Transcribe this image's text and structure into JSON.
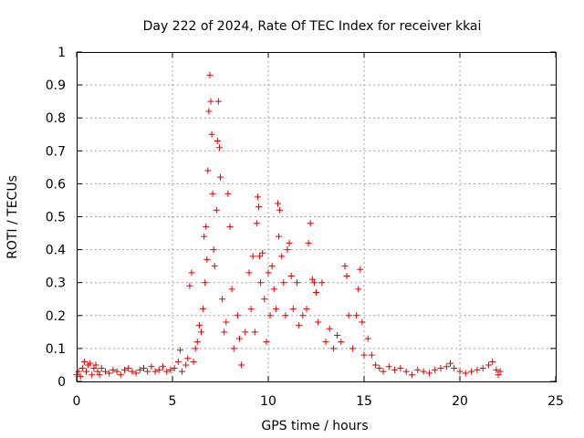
{
  "chart_data": {
    "type": "scatter",
    "title": "Day 222 of 2024, Rate Of TEC Index for receiver kkai",
    "xlabel": "GPS time / hours",
    "ylabel": "ROTI / TECUs",
    "xlim": [
      0,
      25
    ],
    "ylim": [
      0,
      1
    ],
    "x_ticks": [
      "0",
      "5",
      "10",
      "15",
      "20",
      "25"
    ],
    "y_ticks": [
      "0",
      "0.1",
      "0.2",
      "0.3",
      "0.4",
      "0.5",
      "0.6",
      "0.7",
      "0.8",
      "0.9",
      "1"
    ],
    "grid": true,
    "marker": "+",
    "color": "#e00000",
    "series": [
      {
        "points": [
          [
            0.0,
            0.02
          ],
          [
            0.1,
            0.03
          ],
          [
            0.2,
            0.015
          ],
          [
            0.3,
            0.04
          ],
          [
            0.4,
            0.06
          ],
          [
            0.5,
            0.03
          ],
          [
            0.6,
            0.05
          ],
          [
            0.7,
            0.055
          ],
          [
            0.8,
            0.02
          ],
          [
            0.9,
            0.04
          ],
          [
            1.0,
            0.05
          ],
          [
            1.1,
            0.03
          ],
          [
            1.2,
            0.02
          ],
          [
            1.3,
            0.04
          ],
          [
            1.5,
            0.03
          ],
          [
            1.7,
            0.025
          ],
          [
            1.9,
            0.035
          ],
          [
            2.1,
            0.03
          ],
          [
            2.3,
            0.02
          ],
          [
            2.5,
            0.035
          ],
          [
            2.7,
            0.04
          ],
          [
            2.9,
            0.03
          ],
          [
            3.1,
            0.025
          ],
          [
            3.3,
            0.035
          ],
          [
            3.5,
            0.04
          ],
          [
            3.7,
            0.03
          ],
          [
            3.9,
            0.045
          ],
          [
            4.1,
            0.03
          ],
          [
            4.3,
            0.035
          ],
          [
            4.5,
            0.045
          ],
          [
            4.7,
            0.03
          ],
          [
            4.9,
            0.035
          ],
          [
            5.1,
            0.04
          ],
          [
            5.3,
            0.06
          ],
          [
            5.4,
            0.095
          ],
          [
            5.5,
            0.03
          ],
          [
            5.7,
            0.05
          ],
          [
            5.8,
            0.07
          ],
          [
            5.9,
            0.29
          ],
          [
            6.0,
            0.33
          ],
          [
            6.1,
            0.06
          ],
          [
            6.2,
            0.1
          ],
          [
            6.3,
            0.12
          ],
          [
            6.4,
            0.17
          ],
          [
            6.5,
            0.15
          ],
          [
            6.6,
            0.22
          ],
          [
            6.65,
            0.44
          ],
          [
            6.7,
            0.3
          ],
          [
            6.75,
            0.47
          ],
          [
            6.8,
            0.37
          ],
          [
            6.85,
            0.64
          ],
          [
            6.9,
            0.82
          ],
          [
            6.95,
            0.93
          ],
          [
            7.0,
            0.85
          ],
          [
            7.05,
            0.75
          ],
          [
            7.1,
            0.57
          ],
          [
            7.15,
            0.4
          ],
          [
            7.2,
            0.35
          ],
          [
            7.3,
            0.52
          ],
          [
            7.35,
            0.73
          ],
          [
            7.4,
            0.85
          ],
          [
            7.45,
            0.71
          ],
          [
            7.5,
            0.62
          ],
          [
            7.6,
            0.25
          ],
          [
            7.7,
            0.15
          ],
          [
            7.8,
            0.18
          ],
          [
            7.9,
            0.57
          ],
          [
            8.0,
            0.47
          ],
          [
            8.1,
            0.28
          ],
          [
            8.2,
            0.1
          ],
          [
            8.4,
            0.2
          ],
          [
            8.5,
            0.13
          ],
          [
            8.6,
            0.05
          ],
          [
            8.8,
            0.15
          ],
          [
            9.0,
            0.33
          ],
          [
            9.1,
            0.22
          ],
          [
            9.2,
            0.38
          ],
          [
            9.3,
            0.15
          ],
          [
            9.4,
            0.48
          ],
          [
            9.45,
            0.56
          ],
          [
            9.5,
            0.53
          ],
          [
            9.55,
            0.38
          ],
          [
            9.6,
            0.3
          ],
          [
            9.7,
            0.39
          ],
          [
            9.8,
            0.25
          ],
          [
            9.9,
            0.12
          ],
          [
            10.0,
            0.33
          ],
          [
            10.1,
            0.2
          ],
          [
            10.2,
            0.35
          ],
          [
            10.3,
            0.28
          ],
          [
            10.4,
            0.22
          ],
          [
            10.5,
            0.54
          ],
          [
            10.55,
            0.44
          ],
          [
            10.6,
            0.52
          ],
          [
            10.7,
            0.38
          ],
          [
            10.8,
            0.3
          ],
          [
            10.9,
            0.2
          ],
          [
            11.0,
            0.4
          ],
          [
            11.1,
            0.42
          ],
          [
            11.2,
            0.32
          ],
          [
            11.3,
            0.22
          ],
          [
            11.5,
            0.3
          ],
          [
            11.6,
            0.17
          ],
          [
            11.8,
            0.2
          ],
          [
            12.0,
            0.22
          ],
          [
            12.1,
            0.42
          ],
          [
            12.2,
            0.48
          ],
          [
            12.3,
            0.31
          ],
          [
            12.4,
            0.3
          ],
          [
            12.5,
            0.27
          ],
          [
            12.6,
            0.18
          ],
          [
            12.8,
            0.3
          ],
          [
            13.0,
            0.12
          ],
          [
            13.2,
            0.16
          ],
          [
            13.4,
            0.1
          ],
          [
            13.6,
            0.14
          ],
          [
            13.8,
            0.12
          ],
          [
            14.0,
            0.35
          ],
          [
            14.1,
            0.32
          ],
          [
            14.2,
            0.2
          ],
          [
            14.4,
            0.1
          ],
          [
            14.6,
            0.2
          ],
          [
            14.7,
            0.28
          ],
          [
            14.8,
            0.34
          ],
          [
            14.9,
            0.18
          ],
          [
            15.0,
            0.08
          ],
          [
            15.2,
            0.13
          ],
          [
            15.4,
            0.08
          ],
          [
            15.6,
            0.05
          ],
          [
            15.8,
            0.04
          ],
          [
            16.0,
            0.03
          ],
          [
            16.3,
            0.045
          ],
          [
            16.6,
            0.035
          ],
          [
            16.9,
            0.04
          ],
          [
            17.2,
            0.03
          ],
          [
            17.5,
            0.02
          ],
          [
            17.8,
            0.035
          ],
          [
            18.1,
            0.03
          ],
          [
            18.4,
            0.025
          ],
          [
            18.7,
            0.035
          ],
          [
            19.0,
            0.04
          ],
          [
            19.3,
            0.045
          ],
          [
            19.5,
            0.055
          ],
          [
            19.7,
            0.04
          ],
          [
            20.0,
            0.03
          ],
          [
            20.3,
            0.025
          ],
          [
            20.6,
            0.03
          ],
          [
            20.9,
            0.035
          ],
          [
            21.2,
            0.04
          ],
          [
            21.5,
            0.05
          ],
          [
            21.7,
            0.06
          ],
          [
            21.9,
            0.035
          ],
          [
            22.0,
            0.02
          ],
          [
            22.1,
            0.03
          ]
        ]
      }
    ]
  }
}
